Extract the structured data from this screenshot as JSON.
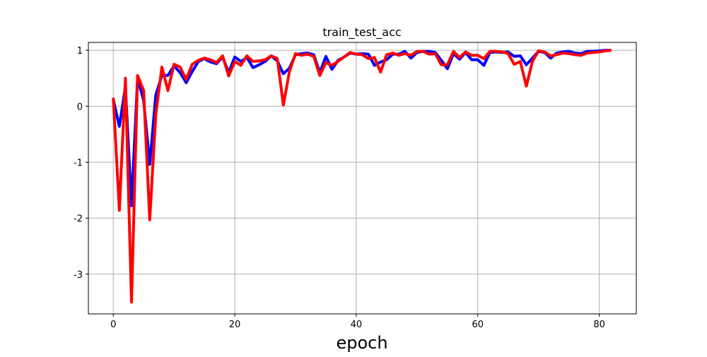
{
  "chart_data": {
    "type": "line",
    "title": "train_test_acc",
    "xlabel": "epoch",
    "ylabel": "",
    "xlim": [
      -4.1,
      86.1
    ],
    "ylim": [
      -3.71,
      1.14
    ],
    "grid": true,
    "x_ticks": [
      0,
      20,
      40,
      60,
      80
    ],
    "x_tick_labels": [
      "0",
      "20",
      "40",
      "60",
      "80"
    ],
    "y_ticks": [
      1,
      0,
      -1,
      -2,
      -3
    ],
    "y_tick_labels": [
      "1",
      "0",
      "-1",
      "-2",
      "-3"
    ],
    "series": [
      {
        "color": "#0000ff",
        "values": [
          0.12,
          -0.36,
          0.35,
          -1.78,
          0.5,
          0.1,
          -1.04,
          0.2,
          0.55,
          0.55,
          0.72,
          0.6,
          0.42,
          0.62,
          0.8,
          0.85,
          0.79,
          0.76,
          0.88,
          0.6,
          0.88,
          0.8,
          0.87,
          0.69,
          0.74,
          0.8,
          0.9,
          0.81,
          0.58,
          0.68,
          0.92,
          0.94,
          0.95,
          0.92,
          0.6,
          0.89,
          0.66,
          0.82,
          0.88,
          0.95,
          0.93,
          0.94,
          0.93,
          0.73,
          0.79,
          0.83,
          0.93,
          0.93,
          0.98,
          0.86,
          0.96,
          0.98,
          0.98,
          0.96,
          0.82,
          0.67,
          0.94,
          0.84,
          0.96,
          0.83,
          0.83,
          0.73,
          0.96,
          0.97,
          0.96,
          0.97,
          0.89,
          0.9,
          0.74,
          0.86,
          0.98,
          0.96,
          0.86,
          0.95,
          0.97,
          0.98,
          0.95,
          0.94,
          0.98,
          0.98,
          0.99,
          1.0,
          1.0
        ]
      },
      {
        "color": "#ff0000",
        "values": [
          0.15,
          -1.86,
          0.5,
          -3.5,
          0.55,
          0.28,
          -2.03,
          -0.15,
          0.7,
          0.28,
          0.75,
          0.7,
          0.48,
          0.75,
          0.82,
          0.86,
          0.83,
          0.78,
          0.9,
          0.54,
          0.8,
          0.73,
          0.9,
          0.8,
          0.81,
          0.83,
          0.9,
          0.85,
          0.02,
          0.62,
          0.94,
          0.91,
          0.93,
          0.89,
          0.55,
          0.78,
          0.73,
          0.8,
          0.88,
          0.96,
          0.93,
          0.92,
          0.85,
          0.87,
          0.61,
          0.92,
          0.95,
          0.91,
          0.94,
          0.91,
          0.98,
          0.98,
          0.93,
          0.94,
          0.74,
          0.74,
          0.98,
          0.87,
          0.97,
          0.91,
          0.91,
          0.85,
          0.98,
          0.98,
          0.97,
          0.94,
          0.75,
          0.8,
          0.36,
          0.8,
          0.99,
          0.97,
          0.9,
          0.92,
          0.95,
          0.94,
          0.92,
          0.91,
          0.95,
          0.96,
          0.97,
          0.99,
          1.0
        ]
      }
    ]
  }
}
